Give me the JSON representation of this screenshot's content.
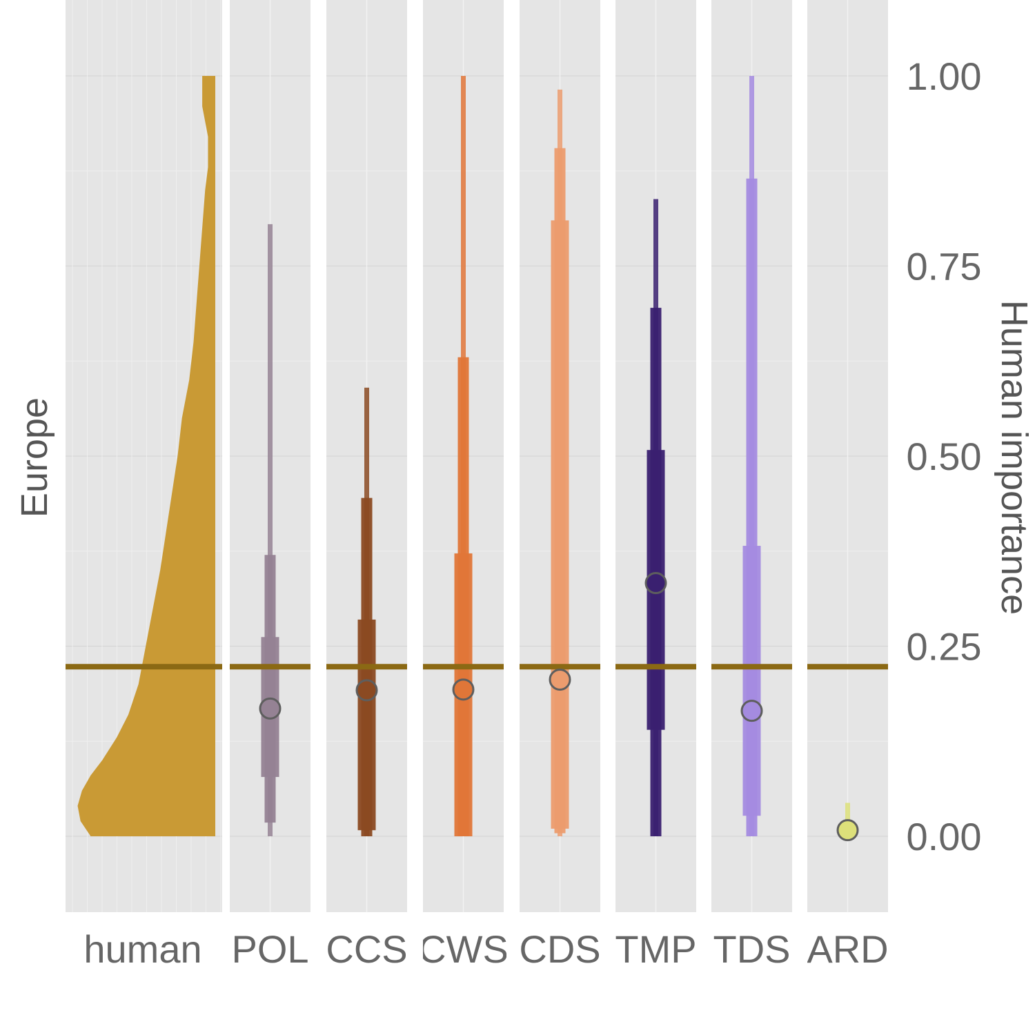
{
  "chart_data": {
    "type": "faceted distribution / interval chart",
    "strip_label": "Europe",
    "ylabel": "Human importance",
    "ylim": [
      -0.1,
      1.1
    ],
    "y_ticks": [
      {
        "value": 0.0,
        "label": "0.00"
      },
      {
        "value": 0.25,
        "label": "0.25"
      },
      {
        "value": 0.5,
        "label": "0.50"
      },
      {
        "value": 0.75,
        "label": "0.75"
      },
      {
        "value": 1.0,
        "label": "1.00"
      }
    ],
    "reference_line": {
      "value": 0.223,
      "color": "#8B6914"
    },
    "human": {
      "label": "human",
      "color": "#C99A35",
      "density": [
        {
          "y": 0.0,
          "d": 0.86
        },
        {
          "y": 0.02,
          "d": 0.93
        },
        {
          "y": 0.04,
          "d": 0.95
        },
        {
          "y": 0.06,
          "d": 0.92
        },
        {
          "y": 0.08,
          "d": 0.86
        },
        {
          "y": 0.1,
          "d": 0.78
        },
        {
          "y": 0.13,
          "d": 0.68
        },
        {
          "y": 0.16,
          "d": 0.6
        },
        {
          "y": 0.2,
          "d": 0.53
        },
        {
          "y": 0.25,
          "d": 0.48
        },
        {
          "y": 0.3,
          "d": 0.43
        },
        {
          "y": 0.35,
          "d": 0.38
        },
        {
          "y": 0.4,
          "d": 0.34
        },
        {
          "y": 0.45,
          "d": 0.3
        },
        {
          "y": 0.5,
          "d": 0.26
        },
        {
          "y": 0.55,
          "d": 0.23
        },
        {
          "y": 0.6,
          "d": 0.18
        },
        {
          "y": 0.65,
          "d": 0.15
        },
        {
          "y": 0.7,
          "d": 0.13
        },
        {
          "y": 0.75,
          "d": 0.11
        },
        {
          "y": 0.8,
          "d": 0.09
        },
        {
          "y": 0.85,
          "d": 0.07
        },
        {
          "y": 0.88,
          "d": 0.05
        },
        {
          "y": 0.92,
          "d": 0.05
        },
        {
          "y": 0.96,
          "d": 0.09
        },
        {
          "y": 1.0,
          "d": 0.09
        }
      ]
    },
    "models": [
      {
        "label": "POL",
        "color": "#958294",
        "point": 0.168,
        "intervals": [
          {
            "level": "outer",
            "lo": 0.0,
            "hi": 0.805
          },
          {
            "level": "mid",
            "lo": 0.018,
            "hi": 0.37
          },
          {
            "level": "inner",
            "lo": 0.078,
            "hi": 0.262
          }
        ]
      },
      {
        "label": "CCS",
        "color": "#8B4A22",
        "point": 0.192,
        "intervals": [
          {
            "level": "outer",
            "lo": 0.0,
            "hi": 0.59
          },
          {
            "level": "mid",
            "lo": 0.0,
            "hi": 0.445
          },
          {
            "level": "inner",
            "lo": 0.008,
            "hi": 0.285
          }
        ]
      },
      {
        "label": "CWS",
        "color": "#E07638",
        "point": 0.193,
        "intervals": [
          {
            "level": "outer",
            "lo": 0.0,
            "hi": 1.0
          },
          {
            "level": "mid",
            "lo": 0.0,
            "hi": 0.63
          },
          {
            "level": "inner",
            "lo": 0.0,
            "hi": 0.372
          }
        ]
      },
      {
        "label": "CDS",
        "color": "#EC9C6E",
        "point": 0.206,
        "intervals": [
          {
            "level": "outer",
            "lo": 0.0,
            "hi": 0.982
          },
          {
            "level": "mid",
            "lo": 0.004,
            "hi": 0.905
          },
          {
            "level": "inner",
            "lo": 0.01,
            "hi": 0.81
          }
        ]
      },
      {
        "label": "TMP",
        "color": "#3A2070",
        "point": 0.333,
        "intervals": [
          {
            "level": "outer",
            "lo": 0.0,
            "hi": 0.838
          },
          {
            "level": "mid",
            "lo": 0.0,
            "hi": 0.695
          },
          {
            "level": "inner",
            "lo": 0.14,
            "hi": 0.508
          }
        ]
      },
      {
        "label": "TDS",
        "color": "#A48BE0",
        "point": 0.165,
        "intervals": [
          {
            "level": "outer",
            "lo": 0.0,
            "hi": 1.0
          },
          {
            "level": "mid",
            "lo": 0.0,
            "hi": 0.865
          },
          {
            "level": "inner",
            "lo": 0.027,
            "hi": 0.382
          }
        ]
      },
      {
        "label": "ARD",
        "color": "#DDE07A",
        "point": 0.008,
        "intervals": [
          {
            "level": "outer",
            "lo": 0.0,
            "hi": 0.044
          }
        ]
      }
    ]
  }
}
